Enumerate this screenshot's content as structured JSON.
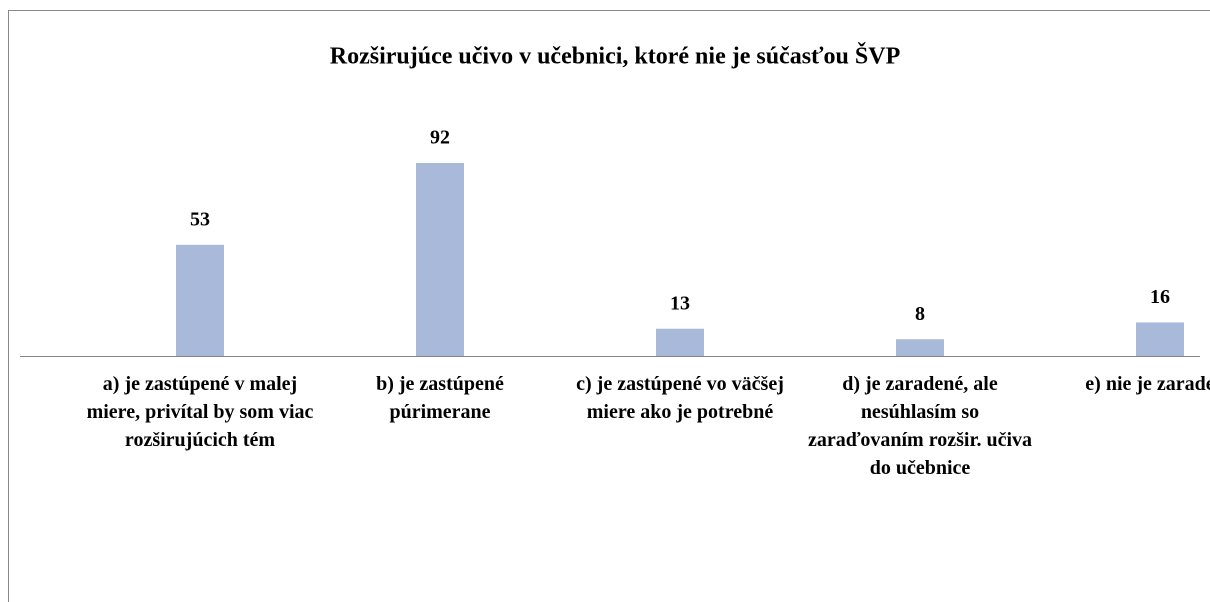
{
  "chart_data": {
    "type": "bar",
    "title": "Rozširujúce učivo v učebnici, ktoré nie je súčasťou ŠVP",
    "categories": [
      "a) je zastúpené v malej miere, privítal by som viac rozširujúcich tém",
      "b) je zastúpené púrimerane",
      "c) je zastúpené vo väčšej miere ako je potrebné",
      "d) je zaradené, ale nesúhlasím so zaraďovaním rozšir. učiva do učebnice",
      "e) nie je zaradené"
    ],
    "values": [
      53,
      92,
      13,
      8,
      16
    ],
    "color": "#a9b9d9"
  }
}
